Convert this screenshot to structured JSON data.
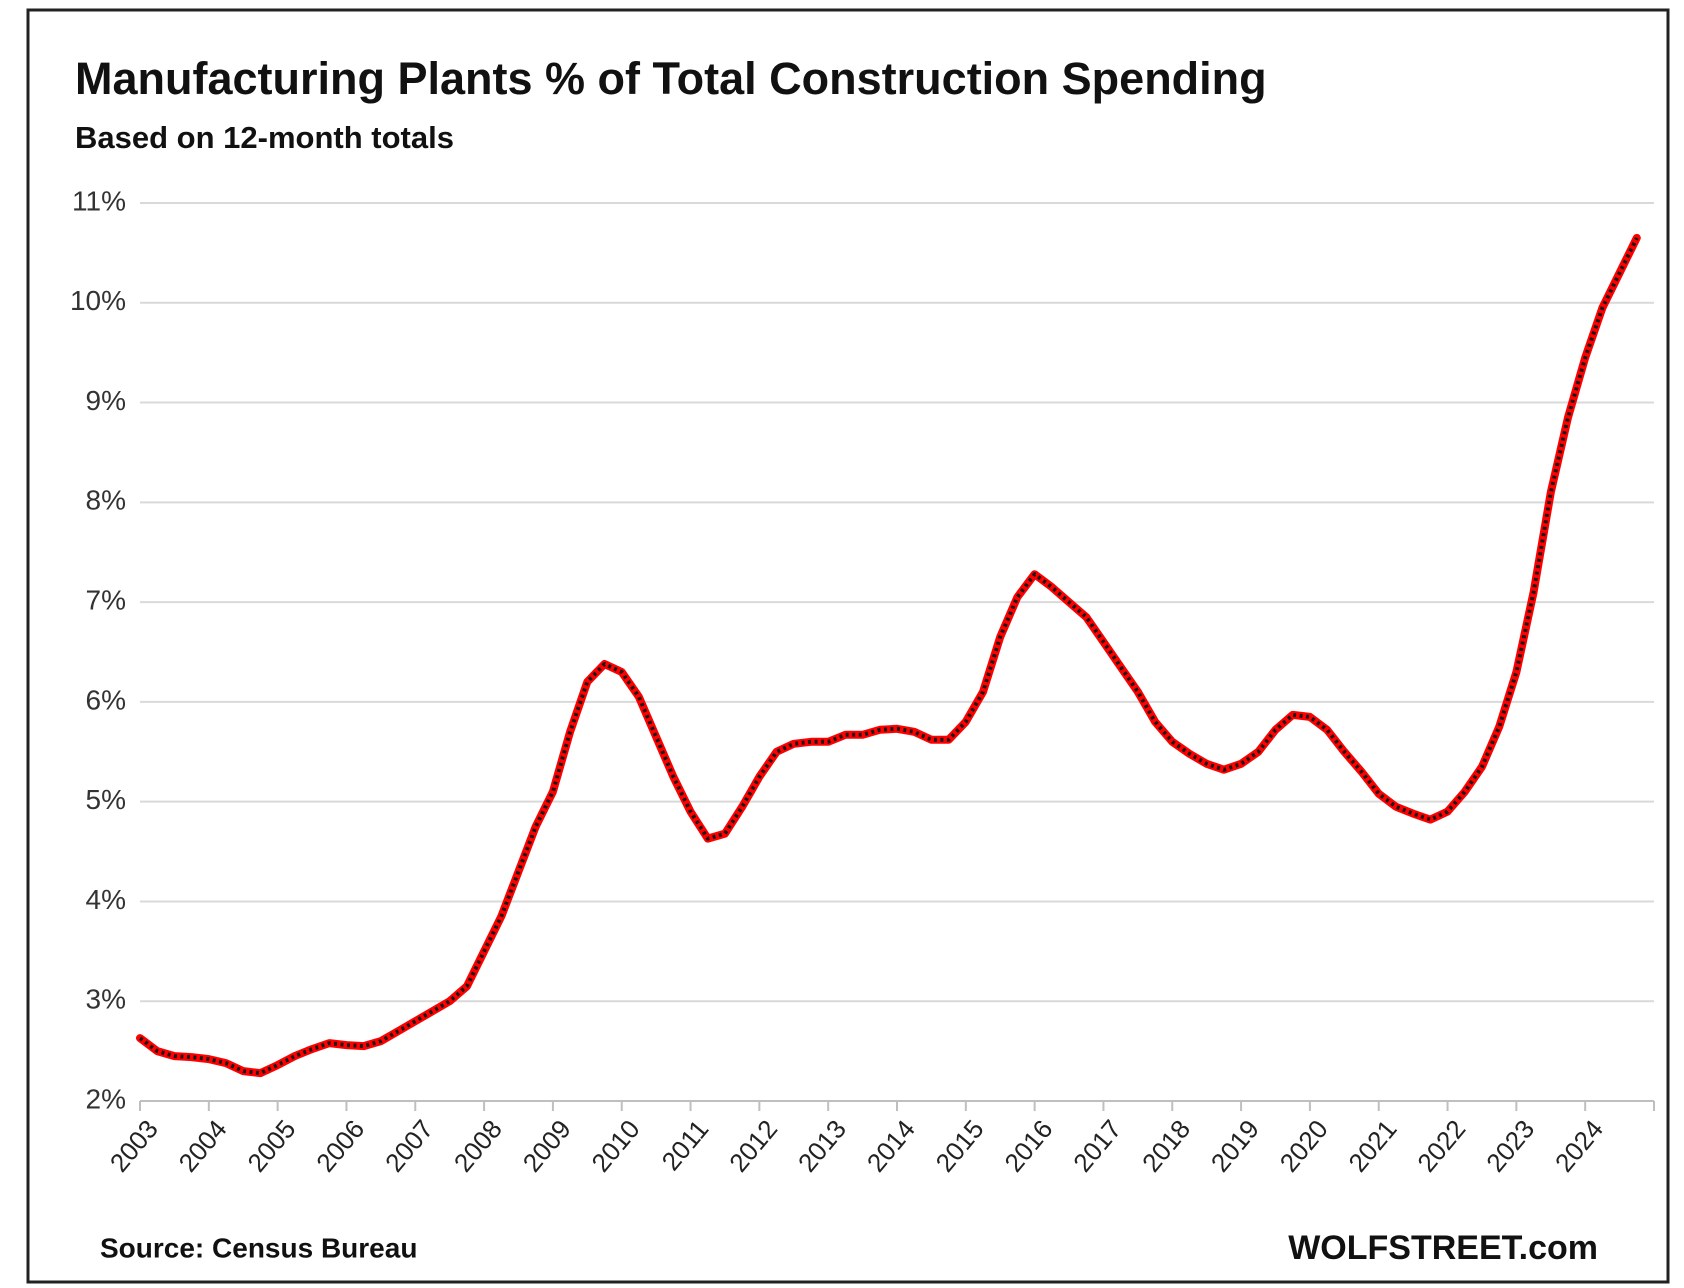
{
  "chart_data": {
    "type": "line",
    "title": "Manufacturing Plants % of Total Construction Spending",
    "subtitle": "Based on 12-month totals",
    "source": "Source: Census Bureau",
    "credit": "WOLFSTREET.com",
    "categories": [
      "2003",
      null,
      null,
      null,
      "2004",
      null,
      null,
      null,
      "2005",
      null,
      null,
      null,
      "2006",
      null,
      null,
      null,
      "2007",
      null,
      null,
      null,
      "2008",
      null,
      null,
      null,
      "2009",
      null,
      null,
      null,
      "2010",
      null,
      null,
      null,
      "2011",
      null,
      null,
      null,
      "2012",
      null,
      null,
      null,
      "2013",
      null,
      null,
      null,
      "2014",
      null,
      null,
      null,
      "2015",
      null,
      null,
      null,
      "2016",
      null,
      null,
      null,
      "2017",
      null,
      null,
      null,
      "2018",
      null,
      null,
      null,
      "2019",
      null,
      null,
      null,
      "2020",
      null,
      null,
      null,
      "2021",
      null,
      null,
      null,
      "2022",
      null,
      null,
      null,
      "2023",
      null,
      null,
      null,
      "2024",
      null,
      null,
      null
    ],
    "series": [
      {
        "name": "Manufacturing Plants",
        "color": "#ff0000",
        "marker_color": "#1a1a1a",
        "values": [
          2.63,
          2.5,
          2.45,
          2.44,
          2.42,
          2.38,
          2.3,
          2.28,
          2.36,
          2.45,
          2.52,
          2.58,
          2.56,
          2.55,
          2.6,
          2.7,
          2.8,
          2.9,
          3.0,
          3.15,
          3.5,
          3.85,
          4.3,
          4.75,
          5.1,
          5.7,
          6.2,
          6.38,
          6.3,
          6.05,
          5.65,
          5.25,
          4.9,
          4.63,
          4.68,
          4.95,
          5.25,
          5.5,
          5.58,
          5.6,
          5.6,
          5.67,
          5.67,
          5.72,
          5.73,
          5.7,
          5.62,
          5.62,
          5.8,
          6.1,
          6.65,
          7.05,
          7.28,
          7.15,
          7.0,
          6.85,
          6.6,
          6.35,
          6.1,
          5.8,
          5.6,
          5.48,
          5.38,
          5.32,
          5.38,
          5.5,
          5.72,
          5.87,
          5.85,
          5.72,
          5.5,
          5.3,
          5.08,
          4.95,
          4.88,
          4.82,
          4.9,
          5.1,
          5.35,
          5.75,
          6.3,
          7.1,
          8.1,
          8.85,
          9.45,
          9.95,
          10.3,
          10.65
        ]
      }
    ],
    "ylim": [
      2,
      11
    ],
    "yticks": [
      {
        "value": 2,
        "label": "2%"
      },
      {
        "value": 3,
        "label": "3%"
      },
      {
        "value": 4,
        "label": "4%"
      },
      {
        "value": 5,
        "label": "5%"
      },
      {
        "value": 6,
        "label": "6%"
      },
      {
        "value": 7,
        "label": "7%"
      },
      {
        "value": 8,
        "label": "8%"
      },
      {
        "value": 9,
        "label": "9%"
      },
      {
        "value": 10,
        "label": "10%"
      },
      {
        "value": 11,
        "label": "11%"
      }
    ],
    "grid": true
  }
}
